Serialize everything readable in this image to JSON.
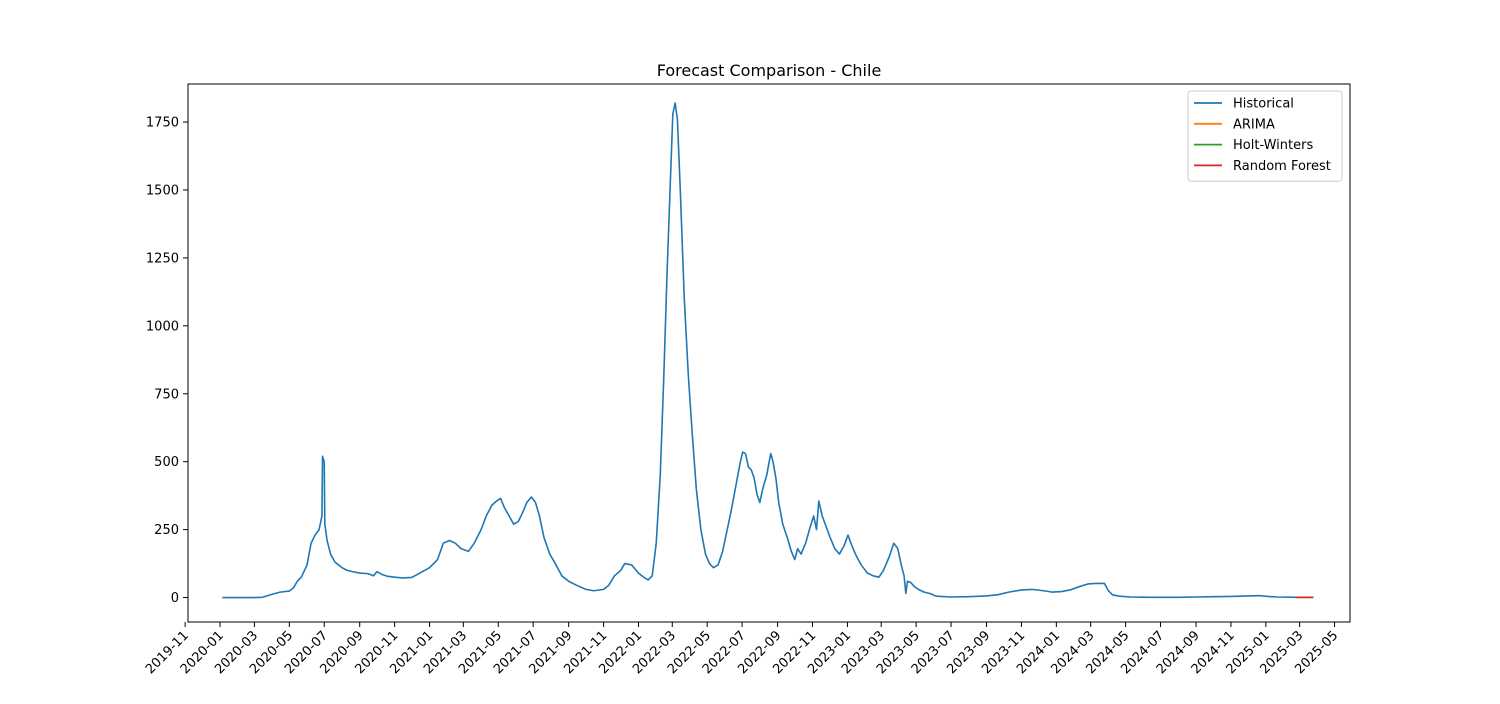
{
  "chart_data": {
    "type": "line",
    "title": "Forecast Comparison - Chile",
    "xlabel": "",
    "ylabel": "",
    "xlim": [
      "2019-11-06",
      "2025-05-28"
    ],
    "ylim": [
      -90,
      1890
    ],
    "x_ticks": [
      "2019-11",
      "2020-01",
      "2020-03",
      "2020-05",
      "2020-07",
      "2020-09",
      "2020-11",
      "2021-01",
      "2021-03",
      "2021-05",
      "2021-07",
      "2021-09",
      "2021-11",
      "2022-01",
      "2022-03",
      "2022-05",
      "2022-07",
      "2022-09",
      "2022-11",
      "2023-01",
      "2023-03",
      "2023-05",
      "2023-07",
      "2023-09",
      "2023-11",
      "2024-01",
      "2024-03",
      "2024-05",
      "2024-07",
      "2024-09",
      "2024-11",
      "2025-01",
      "2025-03",
      "2025-05"
    ],
    "y_ticks": [
      0,
      250,
      500,
      750,
      1000,
      1250,
      1500,
      1750
    ],
    "grid": false,
    "legend_position": "top-right",
    "series": [
      {
        "name": "Historical",
        "color": "#1f77b4",
        "points": [
          [
            "2020-01-05",
            0
          ],
          [
            "2020-02-01",
            0
          ],
          [
            "2020-03-01",
            0
          ],
          [
            "2020-03-15",
            1
          ],
          [
            "2020-04-01",
            12
          ],
          [
            "2020-04-15",
            20
          ],
          [
            "2020-05-01",
            24
          ],
          [
            "2020-05-08",
            35
          ],
          [
            "2020-05-15",
            60
          ],
          [
            "2020-05-22",
            75
          ],
          [
            "2020-06-01",
            120
          ],
          [
            "2020-06-08",
            200
          ],
          [
            "2020-06-15",
            230
          ],
          [
            "2020-06-22",
            250
          ],
          [
            "2020-06-27",
            300
          ],
          [
            "2020-06-28",
            520
          ],
          [
            "2020-07-01",
            500
          ],
          [
            "2020-07-02",
            270
          ],
          [
            "2020-07-06",
            210
          ],
          [
            "2020-07-12",
            160
          ],
          [
            "2020-07-20",
            130
          ],
          [
            "2020-08-01",
            110
          ],
          [
            "2020-08-10",
            100
          ],
          [
            "2020-08-20",
            95
          ],
          [
            "2020-09-01",
            90
          ],
          [
            "2020-09-15",
            88
          ],
          [
            "2020-09-25",
            80
          ],
          [
            "2020-10-01",
            95
          ],
          [
            "2020-10-10",
            85
          ],
          [
            "2020-10-20",
            78
          ],
          [
            "2020-11-01",
            75
          ],
          [
            "2020-11-15",
            72
          ],
          [
            "2020-12-01",
            74
          ],
          [
            "2020-12-15",
            90
          ],
          [
            "2021-01-01",
            110
          ],
          [
            "2021-01-15",
            140
          ],
          [
            "2021-01-25",
            200
          ],
          [
            "2021-02-05",
            210
          ],
          [
            "2021-02-15",
            200
          ],
          [
            "2021-02-25",
            180
          ],
          [
            "2021-03-10",
            170
          ],
          [
            "2021-03-20",
            200
          ],
          [
            "2021-04-01",
            250
          ],
          [
            "2021-04-10",
            300
          ],
          [
            "2021-04-20",
            340
          ],
          [
            "2021-04-28",
            355
          ],
          [
            "2021-05-05",
            365
          ],
          [
            "2021-05-12",
            330
          ],
          [
            "2021-05-20",
            300
          ],
          [
            "2021-05-28",
            270
          ],
          [
            "2021-06-05",
            280
          ],
          [
            "2021-06-12",
            310
          ],
          [
            "2021-06-20",
            350
          ],
          [
            "2021-06-28",
            370
          ],
          [
            "2021-07-05",
            350
          ],
          [
            "2021-07-12",
            300
          ],
          [
            "2021-07-20",
            220
          ],
          [
            "2021-07-30",
            160
          ],
          [
            "2021-08-10",
            120
          ],
          [
            "2021-08-20",
            80
          ],
          [
            "2021-09-01",
            60
          ],
          [
            "2021-09-15",
            45
          ],
          [
            "2021-10-01",
            30
          ],
          [
            "2021-10-15",
            25
          ],
          [
            "2021-11-01",
            30
          ],
          [
            "2021-11-10",
            45
          ],
          [
            "2021-11-20",
            80
          ],
          [
            "2021-12-01",
            100
          ],
          [
            "2021-12-08",
            125
          ],
          [
            "2021-12-20",
            120
          ],
          [
            "2022-01-01",
            90
          ],
          [
            "2022-01-10",
            75
          ],
          [
            "2022-01-18",
            65
          ],
          [
            "2022-01-25",
            80
          ],
          [
            "2022-02-01",
            200
          ],
          [
            "2022-02-08",
            450
          ],
          [
            "2022-02-14",
            800
          ],
          [
            "2022-02-20",
            1200
          ],
          [
            "2022-02-26",
            1550
          ],
          [
            "2022-03-02",
            1780
          ],
          [
            "2022-03-06",
            1820
          ],
          [
            "2022-03-10",
            1760
          ],
          [
            "2022-03-15",
            1500
          ],
          [
            "2022-03-22",
            1100
          ],
          [
            "2022-03-29",
            820
          ],
          [
            "2022-04-05",
            600
          ],
          [
            "2022-04-12",
            400
          ],
          [
            "2022-04-20",
            250
          ],
          [
            "2022-04-28",
            160
          ],
          [
            "2022-05-05",
            125
          ],
          [
            "2022-05-12",
            110
          ],
          [
            "2022-05-20",
            120
          ],
          [
            "2022-05-28",
            170
          ],
          [
            "2022-06-05",
            250
          ],
          [
            "2022-06-12",
            320
          ],
          [
            "2022-06-20",
            410
          ],
          [
            "2022-06-28",
            500
          ],
          [
            "2022-07-02",
            535
          ],
          [
            "2022-07-07",
            530
          ],
          [
            "2022-07-12",
            480
          ],
          [
            "2022-07-17",
            470
          ],
          [
            "2022-07-22",
            440
          ],
          [
            "2022-07-27",
            380
          ],
          [
            "2022-08-01",
            350
          ],
          [
            "2022-08-06",
            400
          ],
          [
            "2022-08-13",
            450
          ],
          [
            "2022-08-20",
            530
          ],
          [
            "2022-08-24",
            500
          ],
          [
            "2022-08-29",
            440
          ],
          [
            "2022-09-03",
            350
          ],
          [
            "2022-09-10",
            270
          ],
          [
            "2022-09-18",
            220
          ],
          [
            "2022-09-25",
            170
          ],
          [
            "2022-10-01",
            140
          ],
          [
            "2022-10-06",
            180
          ],
          [
            "2022-10-12",
            160
          ],
          [
            "2022-10-20",
            200
          ],
          [
            "2022-10-28",
            260
          ],
          [
            "2022-11-03",
            300
          ],
          [
            "2022-11-08",
            250
          ],
          [
            "2022-11-12",
            355
          ],
          [
            "2022-11-18",
            300
          ],
          [
            "2022-11-25",
            260
          ],
          [
            "2022-12-02",
            220
          ],
          [
            "2022-12-10",
            180
          ],
          [
            "2022-12-18",
            160
          ],
          [
            "2022-12-26",
            190
          ],
          [
            "2023-01-02",
            230
          ],
          [
            "2023-01-08",
            195
          ],
          [
            "2023-01-15",
            160
          ],
          [
            "2023-01-25",
            120
          ],
          [
            "2023-02-05",
            90
          ],
          [
            "2023-02-15",
            80
          ],
          [
            "2023-02-25",
            75
          ],
          [
            "2023-03-05",
            100
          ],
          [
            "2023-03-15",
            150
          ],
          [
            "2023-03-23",
            200
          ],
          [
            "2023-03-30",
            180
          ],
          [
            "2023-04-05",
            120
          ],
          [
            "2023-04-10",
            80
          ],
          [
            "2023-04-13",
            15
          ],
          [
            "2023-04-16",
            60
          ],
          [
            "2023-04-22",
            55
          ],
          [
            "2023-04-28",
            40
          ],
          [
            "2023-05-05",
            30
          ],
          [
            "2023-05-15",
            20
          ],
          [
            "2023-05-25",
            15
          ],
          [
            "2023-06-05",
            5
          ],
          [
            "2023-07-01",
            2
          ],
          [
            "2023-08-01",
            3
          ],
          [
            "2023-09-01",
            6
          ],
          [
            "2023-09-20",
            10
          ],
          [
            "2023-10-10",
            20
          ],
          [
            "2023-11-01",
            28
          ],
          [
            "2023-11-20",
            30
          ],
          [
            "2023-12-10",
            25
          ],
          [
            "2023-12-25",
            20
          ],
          [
            "2024-01-10",
            22
          ],
          [
            "2024-01-25",
            28
          ],
          [
            "2024-02-10",
            40
          ],
          [
            "2024-02-25",
            50
          ],
          [
            "2024-03-10",
            52
          ],
          [
            "2024-03-25",
            52
          ],
          [
            "2024-04-01",
            25
          ],
          [
            "2024-04-08",
            10
          ],
          [
            "2024-04-20",
            5
          ],
          [
            "2024-05-10",
            2
          ],
          [
            "2024-06-15",
            1
          ],
          [
            "2024-08-01",
            1
          ],
          [
            "2024-09-01",
            2
          ],
          [
            "2024-10-01",
            3
          ],
          [
            "2024-11-01",
            4
          ],
          [
            "2024-12-01",
            6
          ],
          [
            "2024-12-20",
            7
          ],
          [
            "2025-01-05",
            4
          ],
          [
            "2025-01-20",
            2
          ],
          [
            "2025-02-23",
            1
          ]
        ]
      },
      {
        "name": "ARIMA",
        "color": "#ff7f0e",
        "points": [
          [
            "2025-02-23",
            1
          ],
          [
            "2025-03-25",
            1
          ]
        ]
      },
      {
        "name": "Holt-Winters",
        "color": "#2ca02c",
        "points": [
          [
            "2025-02-23",
            1
          ],
          [
            "2025-03-25",
            1
          ]
        ]
      },
      {
        "name": "Random Forest",
        "color": "#d62728",
        "points": [
          [
            "2025-02-23",
            1
          ],
          [
            "2025-03-25",
            1
          ]
        ]
      }
    ]
  }
}
